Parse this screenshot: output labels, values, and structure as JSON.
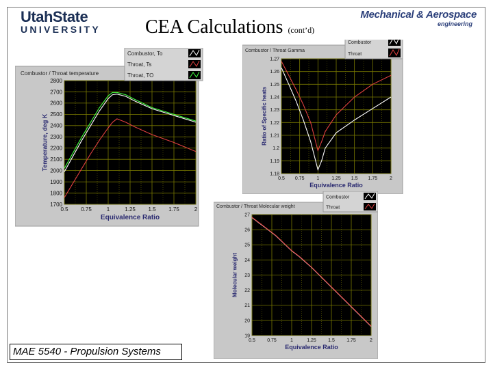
{
  "header": {
    "left_logo_top": "UtahState",
    "left_logo_bottom": "UNIVERSITY",
    "title": "CEA  Calculations",
    "title_sub": "(cont’d)",
    "right_logo_top": "Mechanical & Aerospace",
    "right_logo_bottom": "engineering"
  },
  "footer": {
    "text": "MAE 5540 - Propulsion Systems"
  },
  "colors": {
    "panel": "#c8c8c8",
    "plot_bg": "#000000",
    "grid": "#7a7a00",
    "combustor": "#ffffff",
    "throat": "#e04040",
    "throat_td": "#40ff40"
  },
  "chart_data": [
    {
      "type": "line",
      "title": "Combustor / Throat temperature",
      "xlabel": "Equivalence Ratio",
      "ylabel": "Temperature, deg K",
      "xlim": [
        0.5,
        2
      ],
      "ylim": [
        1700,
        2800
      ],
      "xticks": [
        "0.5",
        "0.75",
        "1",
        "1.25",
        "1.5",
        "1.75",
        "2"
      ],
      "yticks": [
        "1700",
        "1800",
        "1900",
        "2000",
        "2100",
        "2200",
        "2300",
        "2400",
        "2500",
        "2600",
        "2700",
        "2800"
      ],
      "legend": [
        "Combustor, To",
        "Throat, Ts",
        "Throat, TO"
      ],
      "series": [
        {
          "name": "Combustor, To",
          "color": "#ffffff",
          "x": [
            0.5,
            0.6,
            0.7,
            0.8,
            0.9,
            1.0,
            1.05,
            1.1,
            1.2,
            1.3,
            1.5,
            1.75,
            2.0
          ],
          "y": [
            1990,
            2130,
            2270,
            2400,
            2530,
            2640,
            2675,
            2680,
            2660,
            2620,
            2550,
            2490,
            2430
          ]
        },
        {
          "name": "Throat, Ts",
          "color": "#e04040",
          "x": [
            0.5,
            0.6,
            0.7,
            0.8,
            0.9,
            1.0,
            1.05,
            1.1,
            1.2,
            1.3,
            1.5,
            1.75,
            2.0
          ],
          "y": [
            1760,
            1890,
            2020,
            2150,
            2270,
            2380,
            2430,
            2460,
            2430,
            2390,
            2320,
            2250,
            2170
          ]
        },
        {
          "name": "Throat, TO",
          "color": "#40ff40",
          "x": [
            0.5,
            0.6,
            0.7,
            0.8,
            0.9,
            1.0,
            1.05,
            1.1,
            1.2,
            1.3,
            1.5,
            1.75,
            2.0
          ],
          "y": [
            2020,
            2160,
            2300,
            2430,
            2560,
            2665,
            2695,
            2695,
            2675,
            2635,
            2560,
            2500,
            2440
          ]
        }
      ]
    },
    {
      "type": "line",
      "title": "Combustor / Throat Gamma",
      "xlabel": "Equivalence Ratio",
      "ylabel": "Ratio of Specific heats",
      "xlim": [
        0.5,
        2
      ],
      "ylim": [
        1.18,
        1.27
      ],
      "xticks": [
        "0.5",
        "0.75",
        "1",
        "1.25",
        "1.5",
        "1.75",
        "2"
      ],
      "yticks": [
        "1.18",
        "1.19",
        "1.2",
        "1.21",
        "1.22",
        "1.23",
        "1.24",
        "1.25",
        "1.26",
        "1.27"
      ],
      "legend": [
        "Combustor",
        "Throat"
      ],
      "series": [
        {
          "name": "Combustor",
          "color": "#ffffff",
          "x": [
            0.5,
            0.6,
            0.7,
            0.8,
            0.9,
            1.0,
            1.05,
            1.1,
            1.25,
            1.5,
            1.75,
            2.0
          ],
          "y": [
            1.263,
            1.25,
            1.237,
            1.222,
            1.205,
            1.183,
            1.19,
            1.2,
            1.212,
            1.222,
            1.231,
            1.24
          ]
        },
        {
          "name": "Throat",
          "color": "#e04040",
          "x": [
            0.5,
            0.6,
            0.7,
            0.8,
            0.9,
            1.0,
            1.05,
            1.1,
            1.25,
            1.5,
            1.75,
            2.0
          ],
          "y": [
            1.268,
            1.257,
            1.246,
            1.234,
            1.22,
            1.198,
            1.205,
            1.213,
            1.226,
            1.24,
            1.25,
            1.257
          ]
        }
      ]
    },
    {
      "type": "line",
      "title": "Combustor / Throat Molecular weight",
      "xlabel": "Equivalence Ratio",
      "ylabel": "Molecular weight",
      "xlim": [
        0.5,
        2
      ],
      "ylim": [
        19,
        27
      ],
      "xticks": [
        "0.5",
        "0.75",
        "1",
        "1.25",
        "1.5",
        "1.75",
        "2"
      ],
      "yticks": [
        "19",
        "20",
        "21",
        "22",
        "23",
        "24",
        "25",
        "26",
        "27"
      ],
      "legend": [
        "Combustor",
        "Throat"
      ],
      "series": [
        {
          "name": "Combustor",
          "color": "#ffffff",
          "x": [
            0.5,
            0.6,
            0.7,
            0.8,
            0.9,
            1.0,
            1.1,
            1.25,
            1.5,
            1.75,
            2.0
          ],
          "y": [
            26.8,
            26.4,
            26.0,
            25.6,
            25.1,
            24.6,
            24.2,
            23.5,
            22.2,
            20.9,
            19.6
          ]
        },
        {
          "name": "Throat",
          "color": "#e04040",
          "x": [
            0.5,
            0.6,
            0.7,
            0.8,
            0.9,
            1.0,
            1.1,
            1.25,
            1.5,
            1.75,
            2.0
          ],
          "y": [
            26.82,
            26.42,
            26.02,
            25.62,
            25.12,
            24.62,
            24.22,
            23.52,
            22.22,
            20.92,
            19.62
          ]
        }
      ]
    }
  ]
}
